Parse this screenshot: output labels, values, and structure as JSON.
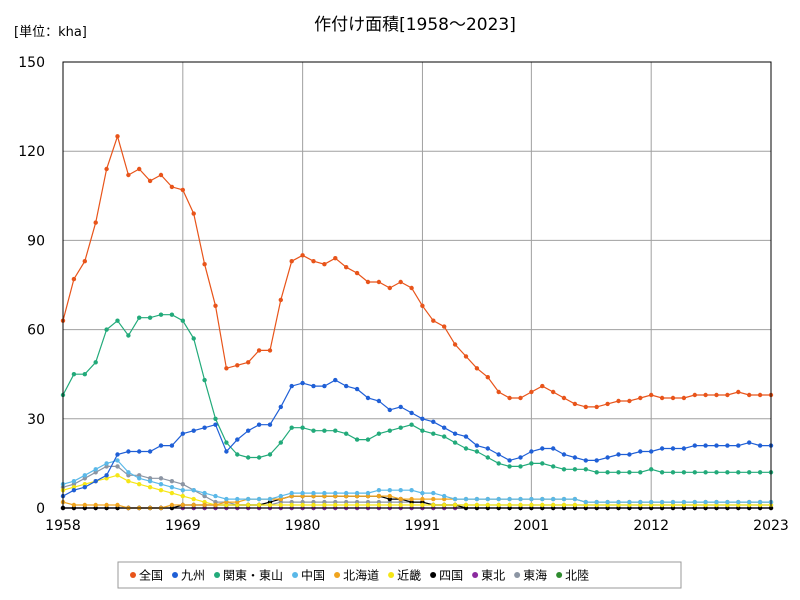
{
  "chart_data": {
    "type": "line",
    "title": "作付け面積[1958～2023]",
    "unit_label": "[単位：kha]",
    "xlabel": "",
    "ylabel": "",
    "xlim": [
      1958,
      2023
    ],
    "ylim": [
      0,
      150
    ],
    "y_ticks": [
      0,
      30,
      60,
      90,
      120,
      150
    ],
    "x_ticks": [
      1958,
      1969,
      1980,
      1991,
      2001,
      2012,
      2023
    ],
    "grid": true,
    "legend_position": "bottom",
    "x": [
      1958,
      1959,
      1960,
      1961,
      1962,
      1963,
      1964,
      1965,
      1966,
      1967,
      1968,
      1969,
      1970,
      1971,
      1972,
      1973,
      1974,
      1975,
      1976,
      1977,
      1978,
      1979,
      1980,
      1981,
      1982,
      1983,
      1984,
      1985,
      1986,
      1987,
      1988,
      1989,
      1990,
      1991,
      1992,
      1993,
      1994,
      1995,
      1996,
      1997,
      1998,
      1999,
      2000,
      2001,
      2002,
      2003,
      2004,
      2005,
      2006,
      2007,
      2008,
      2009,
      2010,
      2011,
      2012,
      2013,
      2014,
      2015,
      2016,
      2017,
      2018,
      2019,
      2020,
      2021,
      2022,
      2023
    ],
    "series": [
      {
        "name": "全国",
        "color": "#e8541a",
        "values": [
          63,
          77,
          83,
          96,
          114,
          125,
          112,
          114,
          110,
          112,
          108,
          107,
          99,
          82,
          68,
          47,
          48,
          49,
          53,
          53,
          70,
          83,
          85,
          83,
          82,
          84,
          81,
          79,
          76,
          76,
          74,
          76,
          74,
          68,
          63,
          61,
          55,
          51,
          47,
          44,
          39,
          37,
          37,
          39,
          41,
          39,
          37,
          35,
          34,
          34,
          35,
          36,
          36,
          37,
          38,
          37,
          37,
          37,
          38,
          38,
          38,
          38,
          39,
          38,
          38,
          38
        ]
      },
      {
        "name": "九州",
        "color": "#1f5fd6",
        "values": [
          4,
          6,
          7,
          9,
          11,
          18,
          19,
          19,
          19,
          21,
          21,
          25,
          26,
          27,
          28,
          19,
          23,
          26,
          28,
          28,
          34,
          41,
          42,
          41,
          41,
          43,
          41,
          40,
          37,
          36,
          33,
          34,
          32,
          30,
          29,
          27,
          25,
          24,
          21,
          20,
          18,
          16,
          17,
          19,
          20,
          20,
          18,
          17,
          16,
          16,
          17,
          18,
          18,
          19,
          19,
          20,
          20,
          20,
          21,
          21,
          21,
          21,
          21,
          22,
          21,
          21
        ]
      },
      {
        "name": "関東・東山",
        "color": "#22aa7a",
        "values": [
          38,
          45,
          45,
          49,
          60,
          63,
          58,
          64,
          64,
          65,
          65,
          63,
          57,
          43,
          30,
          22,
          18,
          17,
          17,
          18,
          22,
          27,
          27,
          26,
          26,
          26,
          25,
          23,
          23,
          25,
          26,
          27,
          28,
          26,
          25,
          24,
          22,
          20,
          19,
          17,
          15,
          14,
          14,
          15,
          15,
          14,
          13,
          13,
          13,
          12,
          12,
          12,
          12,
          12,
          13,
          12,
          12,
          12,
          12,
          12,
          12,
          12,
          12,
          12,
          12,
          12
        ]
      },
      {
        "name": "中国",
        "color": "#5ab8e8",
        "values": [
          8,
          9,
          11,
          13,
          15,
          16,
          12,
          10,
          9,
          8,
          7,
          6,
          6,
          5,
          4,
          3,
          3,
          3,
          3,
          3,
          4,
          5,
          5,
          5,
          5,
          5,
          5,
          5,
          5,
          6,
          6,
          6,
          6,
          5,
          5,
          4,
          3,
          3,
          3,
          3,
          3,
          3,
          3,
          3,
          3,
          3,
          3,
          3,
          2,
          2,
          2,
          2,
          2,
          2,
          2,
          2,
          2,
          2,
          2,
          2,
          2,
          2,
          2,
          2,
          2,
          2
        ]
      },
      {
        "name": "北海道",
        "color": "#f0a41e",
        "values": [
          2,
          1,
          1,
          1,
          1,
          1,
          0,
          0,
          0,
          0,
          1,
          1,
          1,
          1,
          1,
          2,
          2,
          3,
          3,
          3,
          3,
          4,
          4,
          4,
          4,
          4,
          4,
          4,
          4,
          4,
          4,
          3,
          3,
          3,
          3,
          3,
          3,
          3,
          3,
          3,
          3,
          3,
          3,
          3,
          3,
          3,
          3,
          3,
          2,
          2,
          2,
          2,
          2,
          2,
          2,
          2,
          2,
          2,
          2,
          2,
          2,
          2,
          2,
          2,
          2,
          2
        ]
      },
      {
        "name": "近畿",
        "color": "#f5e616",
        "values": [
          6,
          7,
          8,
          9,
          10,
          11,
          9,
          8,
          7,
          6,
          5,
          4,
          3,
          2,
          1,
          1,
          1,
          1,
          1,
          1,
          1,
          1,
          1,
          1,
          1,
          1,
          1,
          1,
          1,
          1,
          1,
          1,
          1,
          1,
          1,
          1,
          1,
          1,
          1,
          1,
          1,
          1,
          1,
          1,
          1,
          1,
          1,
          1,
          1,
          1,
          1,
          1,
          1,
          1,
          1,
          1,
          1,
          1,
          1,
          1,
          1,
          1,
          1,
          1,
          1,
          1
        ]
      },
      {
        "name": "四国",
        "color": "#000000",
        "values": [
          0,
          0,
          0,
          0,
          0,
          0,
          0,
          0,
          0,
          0,
          0,
          1,
          1,
          1,
          1,
          1,
          1,
          1,
          1,
          2,
          3,
          4,
          4,
          4,
          4,
          4,
          4,
          4,
          4,
          4,
          3,
          3,
          2,
          2,
          1,
          1,
          1,
          0,
          0,
          0,
          0,
          0,
          0,
          0,
          0,
          0,
          0,
          0,
          0,
          0,
          0,
          0,
          0,
          0,
          0,
          0,
          0,
          0,
          0,
          0,
          0,
          0,
          0,
          0,
          0,
          0
        ]
      },
      {
        "name": "東北",
        "color": "#8a2a9e",
        "values": [
          0,
          0,
          0,
          0,
          0,
          0,
          0,
          0,
          0,
          0,
          0,
          0,
          0,
          0,
          0,
          0,
          0,
          0,
          0,
          0,
          0,
          0,
          0,
          0,
          0,
          0,
          0,
          0,
          0,
          0,
          0,
          0,
          0,
          0,
          0,
          0,
          0,
          0,
          0,
          0,
          0,
          0,
          0,
          0,
          0,
          0,
          0,
          0,
          0,
          0,
          0,
          0,
          0,
          0,
          0,
          0,
          0,
          0,
          0,
          0,
          0,
          0,
          0,
          0,
          0,
          0
        ]
      },
      {
        "name": "東海",
        "color": "#8c95a3",
        "values": [
          7,
          8,
          10,
          12,
          14,
          14,
          11,
          11,
          10,
          10,
          9,
          8,
          6,
          4,
          2,
          2,
          1,
          1,
          1,
          1,
          2,
          2,
          2,
          2,
          2,
          2,
          2,
          2,
          2,
          2,
          2,
          2,
          2,
          2,
          1,
          1,
          1,
          1,
          1,
          1,
          1,
          1,
          1,
          1,
          1,
          1,
          1,
          1,
          1,
          1,
          1,
          1,
          1,
          1,
          1,
          1,
          1,
          1,
          1,
          1,
          1,
          1,
          1,
          1,
          1,
          1
        ]
      },
      {
        "name": "北陸",
        "color": "#2e8b2e",
        "values": [
          0,
          0,
          0,
          0,
          0,
          0,
          0,
          0,
          0,
          0,
          0,
          0,
          0,
          0,
          0,
          0,
          0,
          0,
          0,
          0,
          0,
          0,
          0,
          0,
          0,
          0,
          0,
          0,
          0,
          0,
          0,
          0,
          0,
          0,
          0,
          0,
          0,
          0,
          0,
          0,
          0,
          0,
          0,
          0,
          0,
          0,
          0,
          0,
          0,
          0,
          0,
          0,
          0,
          0,
          0,
          0,
          0,
          0,
          0,
          0,
          0,
          0,
          0,
          0,
          0,
          0
        ]
      }
    ]
  }
}
